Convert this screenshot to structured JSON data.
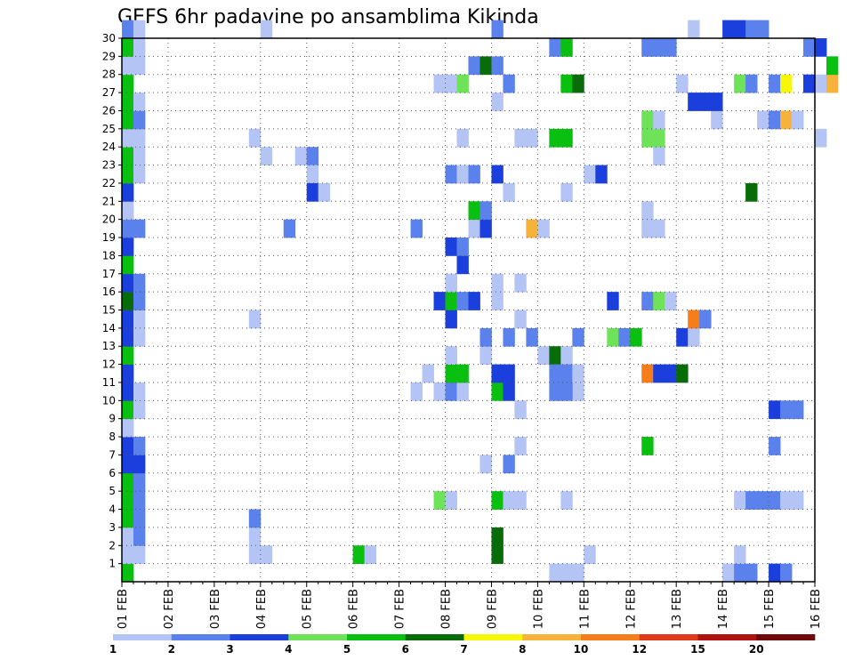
{
  "chart_data": {
    "type": "heatmap",
    "title": "GEFS 6hr padavine po ansamblima Kikinda",
    "x_ticks": [
      "01 FEB",
      "02 FEB",
      "03 FEB",
      "04 FEB",
      "05 FEB",
      "06 FEB",
      "07 FEB",
      "08 FEB",
      "09 FEB",
      "10 FEB",
      "11 FEB",
      "12 FEB",
      "13 FEB",
      "14 FEB",
      "15 FEB",
      "16 FEB"
    ],
    "y_ticks": [
      1,
      2,
      3,
      4,
      5,
      6,
      7,
      8,
      9,
      10,
      11,
      12,
      13,
      14,
      15,
      16,
      17,
      18,
      19,
      20,
      21,
      22,
      23,
      24,
      25,
      26,
      27,
      28,
      29,
      30
    ],
    "ylim": [
      0,
      30
    ],
    "xlim_days": [
      0,
      15
    ],
    "steps_per_day": 4,
    "grid": true,
    "legend": {
      "placement": "bottom",
      "levels": [
        "1",
        "2",
        "3",
        "4",
        "5",
        "6",
        "7",
        "8",
        "10",
        "12",
        "15",
        "20"
      ],
      "colors": [
        "#b4c5f5",
        "#5b82ec",
        "#1b3fdc",
        "#6ee35a",
        "#09c010",
        "#086c08",
        "#f7f70a",
        "#f7b23a",
        "#f77d1b",
        "#e03a1b",
        "#b0120e",
        "#6e0a0a"
      ]
    },
    "cells": [
      [
        0,
        0,
        5
      ],
      [
        0,
        1,
        1
      ],
      [
        0,
        2,
        1
      ],
      [
        0,
        3,
        5
      ],
      [
        0,
        4,
        5
      ],
      [
        0,
        5,
        5
      ],
      [
        0,
        6,
        3
      ],
      [
        0,
        7,
        3
      ],
      [
        0,
        8,
        1
      ],
      [
        0,
        9,
        5
      ],
      [
        0,
        10,
        3
      ],
      [
        0,
        11,
        3
      ],
      [
        0,
        12,
        5
      ],
      [
        0,
        13,
        3
      ],
      [
        0,
        14,
        3
      ],
      [
        0,
        15,
        6
      ],
      [
        0,
        16,
        3
      ],
      [
        0,
        17,
        5
      ],
      [
        0,
        18,
        3
      ],
      [
        0,
        19,
        2
      ],
      [
        0,
        20,
        1
      ],
      [
        0,
        21,
        3
      ],
      [
        0,
        22,
        5
      ],
      [
        0,
        23,
        5
      ],
      [
        0,
        24,
        1
      ],
      [
        0,
        25,
        5
      ],
      [
        0,
        26,
        5
      ],
      [
        0,
        27,
        5
      ],
      [
        0,
        28,
        1
      ],
      [
        0,
        29,
        5
      ],
      [
        0,
        30,
        2
      ],
      [
        1,
        1,
        1
      ],
      [
        1,
        2,
        2
      ],
      [
        1,
        3,
        2
      ],
      [
        1,
        4,
        2
      ],
      [
        1,
        5,
        2
      ],
      [
        1,
        6,
        3
      ],
      [
        1,
        7,
        2
      ],
      [
        1,
        9,
        1
      ],
      [
        1,
        10,
        1
      ],
      [
        1,
        13,
        1
      ],
      [
        1,
        14,
        1
      ],
      [
        1,
        15,
        2
      ],
      [
        1,
        16,
        2
      ],
      [
        1,
        19,
        2
      ],
      [
        1,
        22,
        1
      ],
      [
        1,
        23,
        1
      ],
      [
        1,
        24,
        1
      ],
      [
        1,
        25,
        2
      ],
      [
        1,
        26,
        1
      ],
      [
        1,
        28,
        1
      ],
      [
        1,
        29,
        1
      ],
      [
        1,
        30,
        1
      ],
      [
        11,
        1,
        1
      ],
      [
        12,
        1,
        1
      ],
      [
        11,
        2,
        1
      ],
      [
        11,
        3,
        2
      ],
      [
        11,
        14,
        1
      ],
      [
        12,
        23,
        1
      ],
      [
        11,
        24,
        1
      ],
      [
        12,
        30,
        1
      ],
      [
        15,
        23,
        1
      ],
      [
        16,
        23,
        2
      ],
      [
        16,
        22,
        1
      ],
      [
        14,
        19,
        2
      ],
      [
        16,
        21,
        3
      ],
      [
        17,
        21,
        1
      ],
      [
        20,
        1,
        5
      ],
      [
        21,
        1,
        1
      ],
      [
        25,
        10,
        1
      ],
      [
        26,
        11,
        1
      ],
      [
        27,
        10,
        1
      ],
      [
        25,
        19,
        2
      ],
      [
        27,
        4,
        4
      ],
      [
        28,
        4,
        1
      ],
      [
        28,
        10,
        2
      ],
      [
        29,
        10,
        1
      ],
      [
        28,
        11,
        5
      ],
      [
        29,
        11,
        5
      ],
      [
        28,
        12,
        1
      ],
      [
        28,
        14,
        3
      ],
      [
        27,
        15,
        3
      ],
      [
        28,
        15,
        5
      ],
      [
        29,
        15,
        2
      ],
      [
        30,
        15,
        3
      ],
      [
        28,
        16,
        1
      ],
      [
        29,
        17,
        3
      ],
      [
        28,
        18,
        3
      ],
      [
        29,
        18,
        2
      ],
      [
        30,
        19,
        1
      ],
      [
        31,
        19,
        3
      ],
      [
        30,
        20,
        5
      ],
      [
        31,
        20,
        2
      ],
      [
        28,
        22,
        2
      ],
      [
        29,
        22,
        1
      ],
      [
        30,
        22,
        2
      ],
      [
        29,
        24,
        1
      ],
      [
        27,
        27,
        1
      ],
      [
        28,
        27,
        1
      ],
      [
        29,
        27,
        4
      ],
      [
        30,
        28,
        2
      ],
      [
        31,
        28,
        6
      ],
      [
        32,
        1,
        6
      ],
      [
        32,
        2,
        6
      ],
      [
        32,
        4,
        5
      ],
      [
        33,
        4,
        1
      ],
      [
        31,
        6,
        1
      ],
      [
        33,
        6,
        2
      ],
      [
        32,
        10,
        5
      ],
      [
        33,
        10,
        3
      ],
      [
        32,
        11,
        3
      ],
      [
        33,
        11,
        3
      ],
      [
        31,
        12,
        1
      ],
      [
        31,
        13,
        2
      ],
      [
        32,
        15,
        1
      ],
      [
        32,
        16,
        1
      ],
      [
        32,
        22,
        3
      ],
      [
        33,
        21,
        1
      ],
      [
        33,
        27,
        2
      ],
      [
        32,
        26,
        1
      ],
      [
        32,
        28,
        2
      ],
      [
        32,
        30,
        2
      ],
      [
        34,
        4,
        1
      ],
      [
        34,
        7,
        1
      ],
      [
        34,
        9,
        1
      ],
      [
        33,
        13,
        2
      ],
      [
        34,
        14,
        1
      ],
      [
        34,
        16,
        1
      ],
      [
        35,
        13,
        2
      ],
      [
        35,
        19,
        8
      ],
      [
        36,
        19,
        1
      ],
      [
        36,
        12,
        1
      ],
      [
        37,
        12,
        6
      ],
      [
        38,
        12,
        1
      ],
      [
        37,
        11,
        2
      ],
      [
        38,
        11,
        2
      ],
      [
        39,
        11,
        1
      ],
      [
        39,
        10,
        1
      ],
      [
        34,
        24,
        1
      ],
      [
        35,
        24,
        1
      ],
      [
        37,
        24,
        5
      ],
      [
        38,
        24,
        5
      ],
      [
        37,
        29,
        2
      ],
      [
        38,
        29,
        5
      ],
      [
        38,
        27,
        5
      ],
      [
        39,
        27,
        6
      ],
      [
        38,
        21,
        1
      ],
      [
        37,
        10,
        2
      ],
      [
        38,
        10,
        2
      ],
      [
        38,
        4,
        1
      ],
      [
        37,
        0,
        1
      ],
      [
        38,
        0,
        1
      ],
      [
        39,
        0,
        1
      ],
      [
        40,
        1,
        1
      ],
      [
        39,
        13,
        2
      ],
      [
        40,
        22,
        1
      ],
      [
        41,
        22,
        3
      ],
      [
        42,
        15,
        3
      ],
      [
        42,
        13,
        4
      ],
      [
        43,
        13,
        2
      ],
      [
        44,
        13,
        5
      ],
      [
        45,
        7,
        5
      ],
      [
        45,
        19,
        1
      ],
      [
        46,
        19,
        1
      ],
      [
        45,
        20,
        1
      ],
      [
        45,
        11,
        10
      ],
      [
        46,
        11,
        3
      ],
      [
        47,
        11,
        3
      ],
      [
        45,
        15,
        2
      ],
      [
        46,
        15,
        4
      ],
      [
        47,
        15,
        1
      ],
      [
        45,
        24,
        4
      ],
      [
        46,
        24,
        4
      ],
      [
        45,
        25,
        4
      ],
      [
        46,
        25,
        1
      ],
      [
        45,
        29,
        2
      ],
      [
        46,
        29,
        2
      ],
      [
        47,
        29,
        2
      ],
      [
        46,
        23,
        1
      ],
      [
        48,
        11,
        6
      ],
      [
        48,
        13,
        3
      ],
      [
        49,
        13,
        1
      ],
      [
        49,
        14,
        9
      ],
      [
        50,
        14,
        2
      ],
      [
        49,
        26,
        3
      ],
      [
        50,
        26,
        3
      ],
      [
        48,
        27,
        1
      ],
      [
        51,
        25,
        1
      ],
      [
        51,
        26,
        3
      ],
      [
        49,
        30,
        1
      ],
      [
        52,
        0,
        1
      ],
      [
        53,
        0,
        2
      ],
      [
        54,
        0,
        2
      ],
      [
        52,
        30,
        3
      ],
      [
        53,
        30,
        3
      ],
      [
        54,
        30,
        2
      ],
      [
        55,
        30,
        2
      ],
      [
        53,
        1,
        1
      ],
      [
        53,
        4,
        1
      ],
      [
        54,
        4,
        2
      ],
      [
        55,
        4,
        2
      ],
      [
        56,
        4,
        2
      ],
      [
        57,
        4,
        1
      ],
      [
        58,
        4,
        1
      ],
      [
        54,
        21,
        6
      ],
      [
        55,
        25,
        1
      ],
      [
        56,
        25,
        2
      ],
      [
        57,
        25,
        8
      ],
      [
        58,
        25,
        1
      ],
      [
        53,
        27,
        4
      ],
      [
        54,
        27,
        2
      ],
      [
        56,
        27,
        2
      ],
      [
        57,
        27,
        7
      ],
      [
        59,
        27,
        3
      ],
      [
        60,
        27,
        1
      ],
      [
        61,
        27,
        8
      ],
      [
        56,
        0,
        3
      ],
      [
        57,
        0,
        2
      ],
      [
        56,
        9,
        3
      ],
      [
        57,
        9,
        2
      ],
      [
        58,
        9,
        2
      ],
      [
        56,
        7,
        2
      ],
      [
        59,
        29,
        2
      ],
      [
        60,
        29,
        3
      ],
      [
        61,
        28,
        5
      ],
      [
        60,
        24,
        1
      ]
    ]
  }
}
